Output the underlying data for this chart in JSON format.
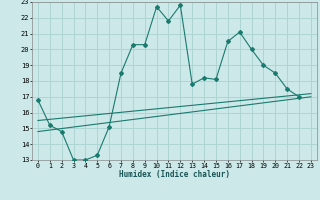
{
  "xlabel": "Humidex (Indice chaleur)",
  "bg_color": "#cce8e8",
  "grid_color": "#afd4d4",
  "line_color": "#1a7a6e",
  "xlim": [
    -0.5,
    23.5
  ],
  "ylim": [
    13,
    23
  ],
  "xticks": [
    0,
    1,
    2,
    3,
    4,
    5,
    6,
    7,
    8,
    9,
    10,
    11,
    12,
    13,
    14,
    15,
    16,
    17,
    18,
    19,
    20,
    21,
    22,
    23
  ],
  "yticks": [
    13,
    14,
    15,
    16,
    17,
    18,
    19,
    20,
    21,
    22,
    23
  ],
  "main_x": [
    0,
    1,
    2,
    3,
    4,
    5,
    6,
    7,
    8,
    9,
    10,
    11,
    12,
    13,
    14,
    15,
    16,
    17,
    18,
    19,
    20,
    21,
    22
  ],
  "main_y": [
    16.8,
    15.2,
    14.8,
    13.0,
    13.0,
    13.3,
    15.1,
    18.5,
    20.3,
    20.3,
    22.7,
    21.8,
    22.8,
    17.8,
    18.2,
    18.1,
    20.5,
    21.1,
    20.0,
    19.0,
    18.5,
    17.5,
    17.0
  ],
  "trend1_x": [
    0,
    23
  ],
  "trend1_y": [
    14.8,
    17.0
  ],
  "trend2_x": [
    0,
    23
  ],
  "trend2_y": [
    15.5,
    17.2
  ]
}
